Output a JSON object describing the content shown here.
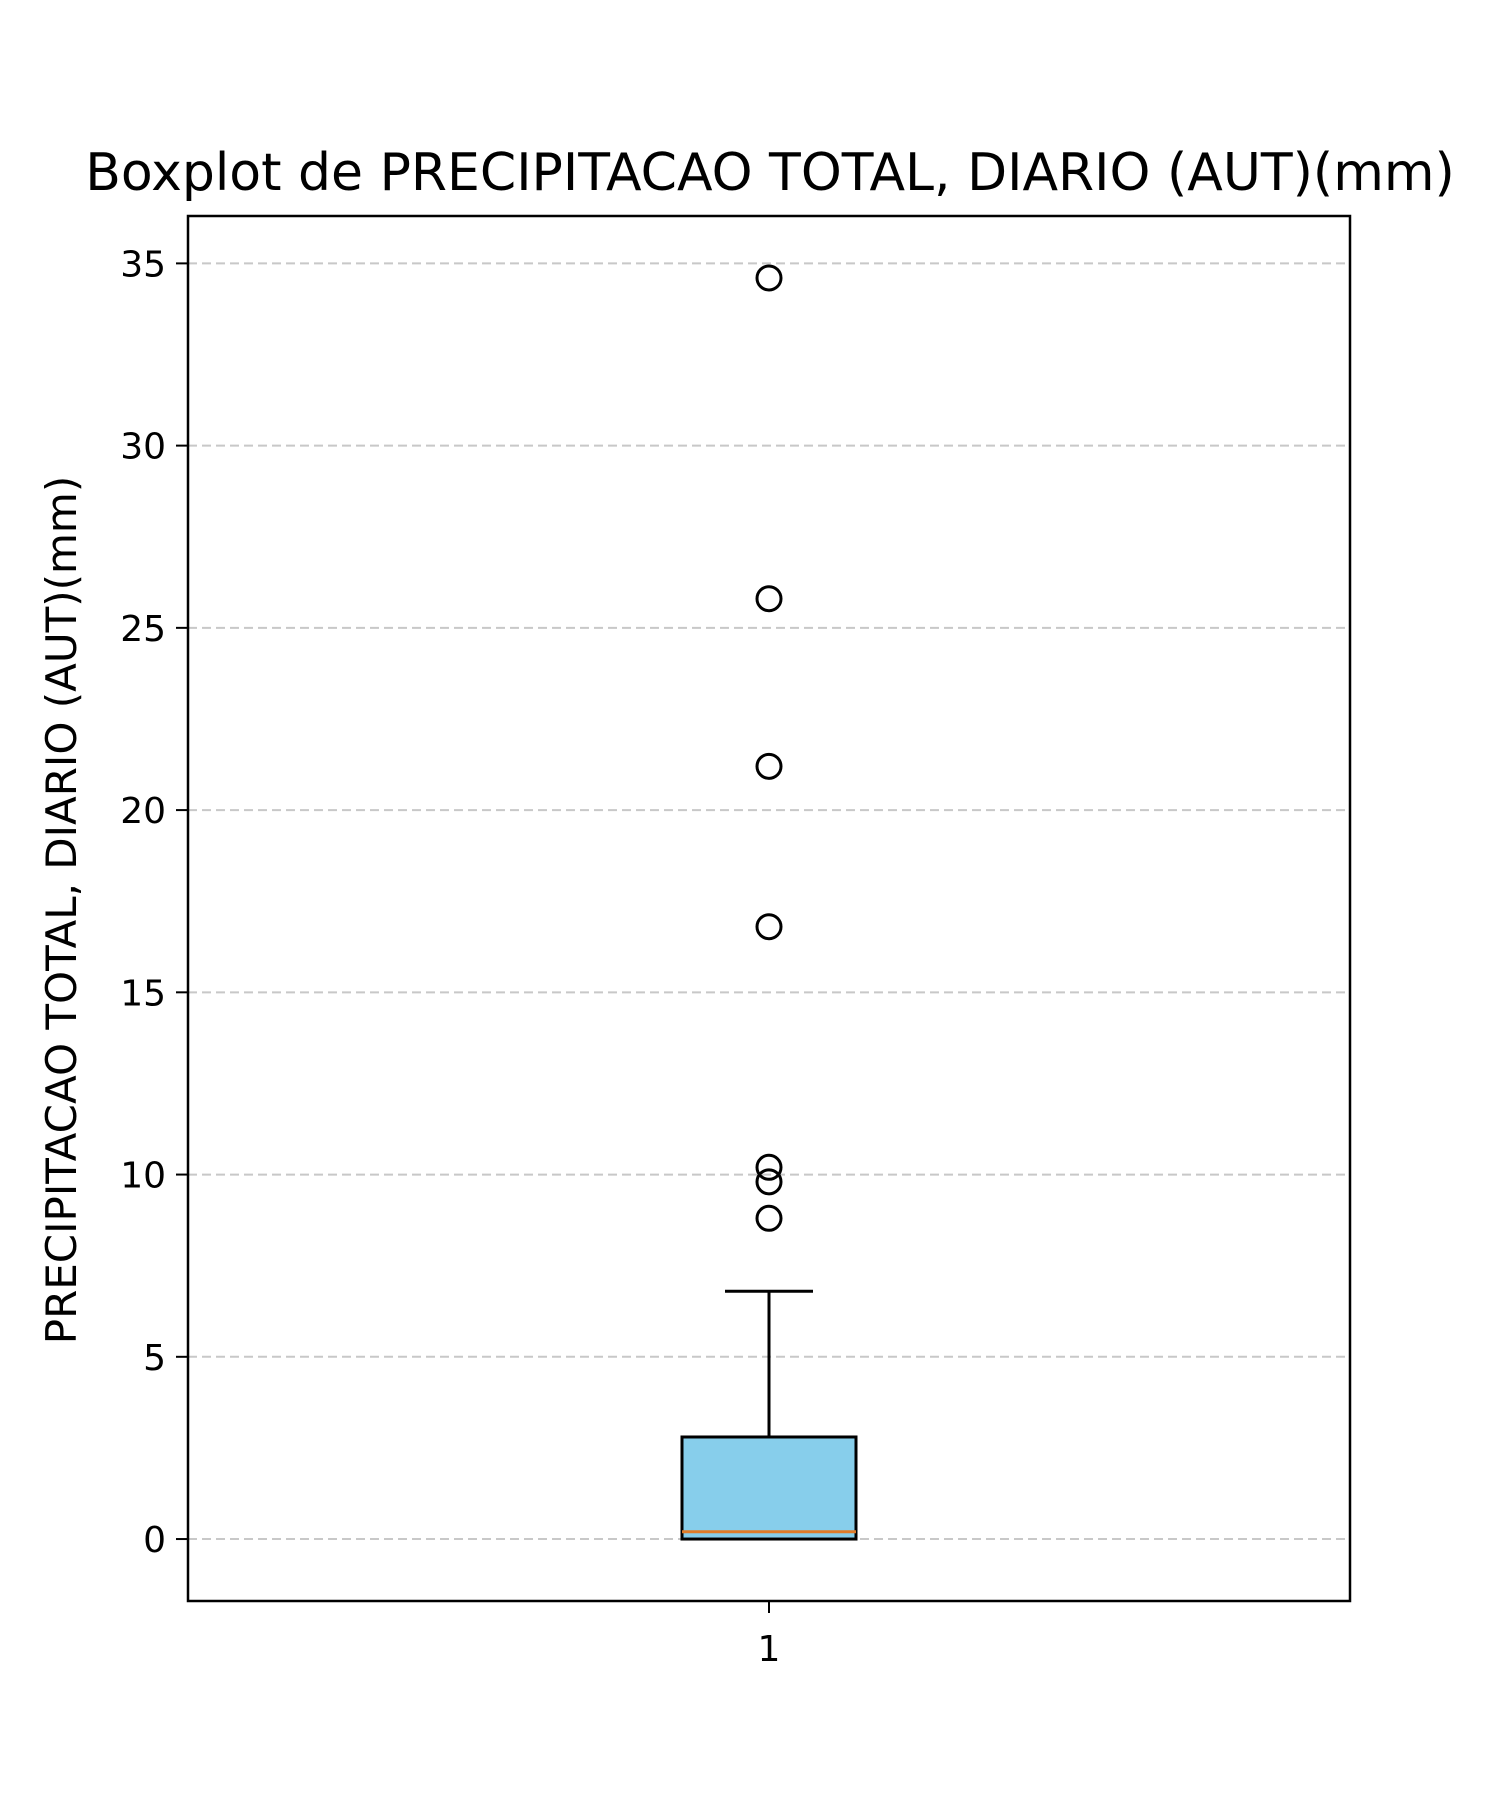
{
  "chart_data": {
    "type": "boxplot",
    "title": "Boxplot de PRECIPITACAO TOTAL, DIARIO (AUT)(mm)",
    "xlabel": "",
    "ylabel": "PRECIPITACAO TOTAL, DIARIO (AUT)(mm)",
    "categories": [
      "1"
    ],
    "ylim": [
      -1.7,
      36.3
    ],
    "yticks": [
      0,
      5,
      10,
      15,
      20,
      25,
      30,
      35
    ],
    "ytick_labels": [
      "0",
      "5",
      "10",
      "15",
      "20",
      "25",
      "30",
      "35"
    ],
    "grid": "y-dashed",
    "box": {
      "q1": 0.0,
      "median": 0.2,
      "q3": 2.8,
      "whisker_low": 0.0,
      "whisker_high": 6.8
    },
    "outliers": [
      8.8,
      9.8,
      10.2,
      16.8,
      21.2,
      25.8,
      34.6
    ],
    "colors": {
      "box_fill": "#87ceeb",
      "median": "#e07b28",
      "grid": "#c8c8c8",
      "edge": "#000000"
    }
  }
}
